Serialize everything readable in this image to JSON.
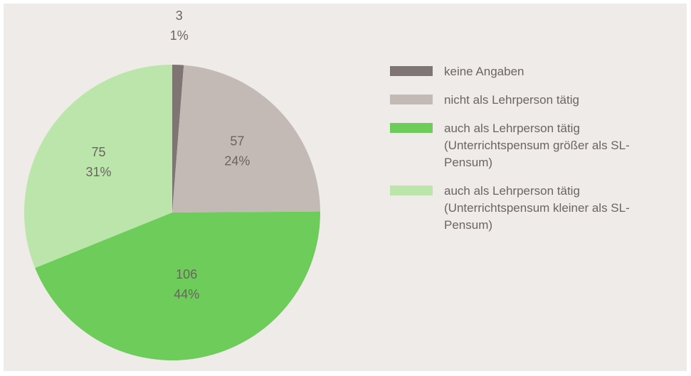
{
  "chart_data": {
    "type": "pie",
    "categories": [
      "keine Angaben",
      "nicht als Lehrperson tätig",
      "auch als Lehrperson tätig (Unterrichtspensum größer als SL-Pensum)",
      "auch als Lehrperson tätig (Unterrichtspensum kleiner als SL-Pensum)"
    ],
    "values": [
      3,
      57,
      106,
      75
    ],
    "percent_labels": [
      "1%",
      "24%",
      "44%",
      "31%"
    ],
    "colors": [
      "#7f7572",
      "#c4bab5",
      "#6dcc5a",
      "#bce5ac"
    ],
    "legend": "right"
  }
}
